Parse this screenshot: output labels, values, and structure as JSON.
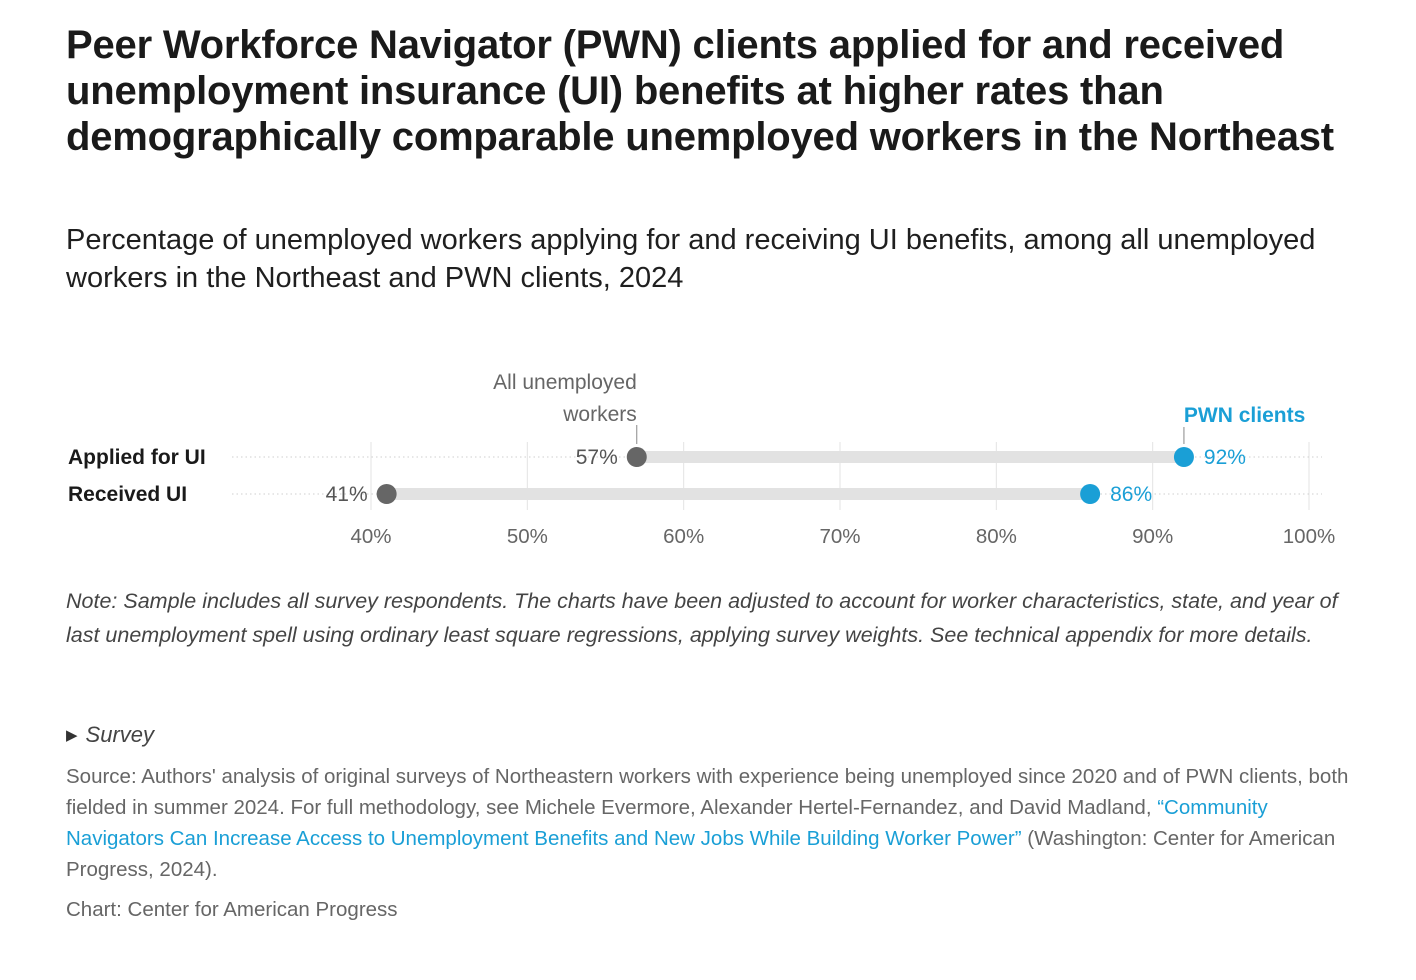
{
  "title": "Peer Workforce Navigator (PWN) clients applied for and received unemployment insurance (UI) benefits at higher rates than demographically comparable unemployed workers in the Northeast",
  "subtitle": "Percentage of unemployed workers applying for and receiving UI benefits, among all unemployed workers in the Northeast and PWN clients, 2024",
  "chart_data": {
    "type": "dot-range",
    "categories": [
      "Applied for UI",
      "Received UI"
    ],
    "series": [
      {
        "name": "All unemployed workers",
        "values": [
          57,
          41
        ],
        "labels": [
          "57%",
          "41%"
        ],
        "color": "#666666"
      },
      {
        "name": "PWN clients",
        "values": [
          92,
          86
        ],
        "labels": [
          "92%",
          "86%"
        ],
        "color": "#1a9fd6"
      }
    ],
    "xlim": [
      40,
      100
    ],
    "xticks": [
      40,
      50,
      60,
      70,
      80,
      90,
      100
    ],
    "xtick_labels": [
      "40%",
      "50%",
      "60%",
      "70%",
      "80%",
      "90%",
      "100%"
    ],
    "grid": true,
    "legend": "annotations above first row",
    "annotations": [
      {
        "text": [
          "All unemployed",
          "workers"
        ],
        "series": 0
      },
      {
        "text": [
          "PWN clients"
        ],
        "series": 1
      }
    ]
  },
  "note": "Note: Sample includes all survey respondents. The charts have been adjusted to account for worker characteristics, state, and year of last unemployment spell using ordinary least square regressions, applying survey weights. See technical appendix for more details.",
  "survey_toggle": "Survey",
  "source": {
    "prefix": "Source: Authors' analysis of original surveys of Northeastern workers with experience being unemployed since 2020 and of PWN clients, both fielded in summer 2024. For full methodology, see Michele Evermore, Alexander Hertel-Fernandez, and David Madland, ",
    "link_text": "“Community Navigators Can Increase Access to Unemployment Benefits and New Jobs While Building Worker Power”",
    "suffix": " (Washington: Center for American Progress, 2024)."
  },
  "credit": "Chart: Center for American Progress"
}
